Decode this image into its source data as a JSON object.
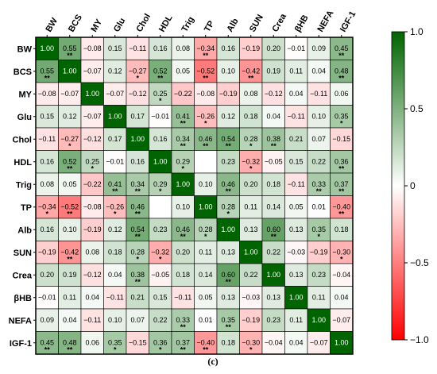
{
  "chart_data": {
    "type": "heatmap",
    "title": "",
    "variables": [
      "BW",
      "BCS",
      "MY",
      "Glu",
      "Chol",
      "HDL",
      "Trig",
      "TP",
      "Alb",
      "SUN",
      "Crea",
      "βHB",
      "NEFA",
      "IGF-1"
    ],
    "values": [
      [
        1.0,
        0.55,
        -0.08,
        0.15,
        -0.11,
        0.16,
        0.08,
        -0.34,
        0.16,
        -0.19,
        0.2,
        -0.01,
        0.09,
        0.45
      ],
      [
        0.55,
        1.0,
        -0.07,
        0.12,
        -0.27,
        0.52,
        0.05,
        -0.52,
        0.1,
        -0.42,
        0.19,
        0.11,
        0.04,
        0.48
      ],
      [
        -0.08,
        -0.07,
        1.0,
        -0.07,
        -0.12,
        0.25,
        -0.22,
        -0.08,
        -0.19,
        0.08,
        -0.12,
        0.04,
        -0.11,
        0.06
      ],
      [
        0.15,
        0.12,
        -0.07,
        1.0,
        0.17,
        -0.01,
        0.41,
        -0.26,
        0.12,
        0.18,
        0.04,
        -0.11,
        0.1,
        0.35
      ],
      [
        -0.11,
        -0.27,
        -0.12,
        0.17,
        1.0,
        0.16,
        0.34,
        0.46,
        0.54,
        0.28,
        0.38,
        0.21,
        0.07,
        -0.15
      ],
      [
        0.16,
        0.52,
        0.25,
        -0.01,
        0.16,
        1.0,
        0.29,
        null,
        0.23,
        -0.32,
        -0.05,
        0.15,
        0.22,
        0.36
      ],
      [
        0.08,
        0.05,
        -0.22,
        0.41,
        0.34,
        0.29,
        1.0,
        0.1,
        0.46,
        0.2,
        0.18,
        -0.11,
        0.33,
        0.37
      ],
      [
        -0.34,
        -0.52,
        -0.08,
        -0.26,
        0.46,
        null,
        0.1,
        1.0,
        0.28,
        0.11,
        0.14,
        0.05,
        0.01,
        -0.4
      ],
      [
        0.16,
        0.1,
        -0.19,
        0.12,
        0.54,
        0.23,
        0.46,
        0.28,
        1.0,
        0.13,
        0.6,
        0.13,
        0.35,
        0.18
      ],
      [
        -0.19,
        -0.42,
        0.08,
        0.18,
        0.28,
        -0.32,
        0.2,
        0.11,
        0.13,
        1.0,
        0.22,
        -0.03,
        -0.19,
        -0.3
      ],
      [
        0.2,
        0.19,
        -0.12,
        0.04,
        0.38,
        -0.05,
        0.18,
        0.14,
        0.6,
        0.22,
        1.0,
        0.13,
        0.23,
        -0.04
      ],
      [
        -0.01,
        0.11,
        0.04,
        -0.11,
        0.21,
        0.15,
        -0.11,
        0.05,
        0.13,
        -0.03,
        0.13,
        1.0,
        0.11,
        0.04
      ],
      [
        0.09,
        0.04,
        -0.11,
        0.1,
        0.07,
        0.22,
        0.33,
        0.01,
        0.35,
        -0.19,
        0.23,
        0.11,
        1.0,
        -0.07
      ],
      [
        0.45,
        0.48,
        0.06,
        0.35,
        -0.15,
        0.36,
        0.37,
        -0.4,
        0.18,
        -0.3,
        -0.04,
        0.04,
        -0.07,
        1.0
      ]
    ],
    "significance": [
      [
        "",
        "**",
        "",
        "",
        "",
        "",
        "",
        "**",
        "",
        "",
        "",
        "",
        "",
        "**"
      ],
      [
        "**",
        "",
        "",
        "",
        "*",
        "**",
        "",
        "**",
        "",
        "**",
        "",
        "",
        "",
        "**"
      ],
      [
        "",
        "",
        "",
        "",
        "",
        "*",
        "",
        "",
        "",
        "",
        "",
        "",
        "",
        ""
      ],
      [
        "",
        "",
        "",
        "",
        "",
        "",
        "**",
        "*",
        "",
        "",
        "",
        "",
        "",
        "*"
      ],
      [
        "",
        "*",
        "",
        "",
        "",
        "",
        "**",
        "**",
        "**",
        "*",
        "**",
        "",
        "",
        ""
      ],
      [
        "",
        "**",
        "*",
        "",
        "",
        "",
        "*",
        "",
        "",
        "*",
        "",
        "",
        "",
        "**"
      ],
      [
        "",
        "",
        "",
        "**",
        "**",
        "*",
        "",
        "",
        "**",
        "",
        "",
        "",
        "**",
        "**"
      ],
      [
        "*",
        "**",
        "",
        "*",
        "**",
        "",
        "",
        "",
        "*",
        "",
        "",
        "",
        "",
        "**"
      ],
      [
        "",
        "",
        "",
        "",
        "**",
        "",
        "**",
        "*",
        "",
        "",
        "**",
        "",
        "*",
        ""
      ],
      [
        "",
        "**",
        "",
        "",
        "*",
        "*",
        "",
        "",
        "",
        "",
        "",
        "",
        "",
        "*"
      ],
      [
        "",
        "",
        "",
        "",
        "**",
        "",
        "",
        "",
        "**",
        "",
        "",
        "",
        "",
        ""
      ],
      [
        "",
        "",
        "",
        "",
        "",
        "",
        "",
        "",
        "",
        "",
        "",
        "",
        "",
        ""
      ],
      [
        "",
        "",
        "",
        "",
        "",
        "",
        "**",
        "",
        "**",
        "",
        "",
        "",
        "",
        ""
      ],
      [
        "**",
        "**",
        "",
        "*",
        "",
        "*",
        "**",
        "**",
        "",
        "*",
        "",
        "",
        "",
        ""
      ]
    ],
    "colorbar": {
      "ticks": [
        "1.0",
        "0.5",
        "0",
        "−0.5",
        "−1.0"
      ],
      "tick_values": [
        1.0,
        0.5,
        0,
        -0.5,
        -1.0
      ],
      "range": [
        -1.0,
        1.0
      ],
      "colors": {
        "positive": "#006400",
        "zero": "#ffffff",
        "negative": "#ff0000"
      }
    },
    "caption": "(c)"
  }
}
